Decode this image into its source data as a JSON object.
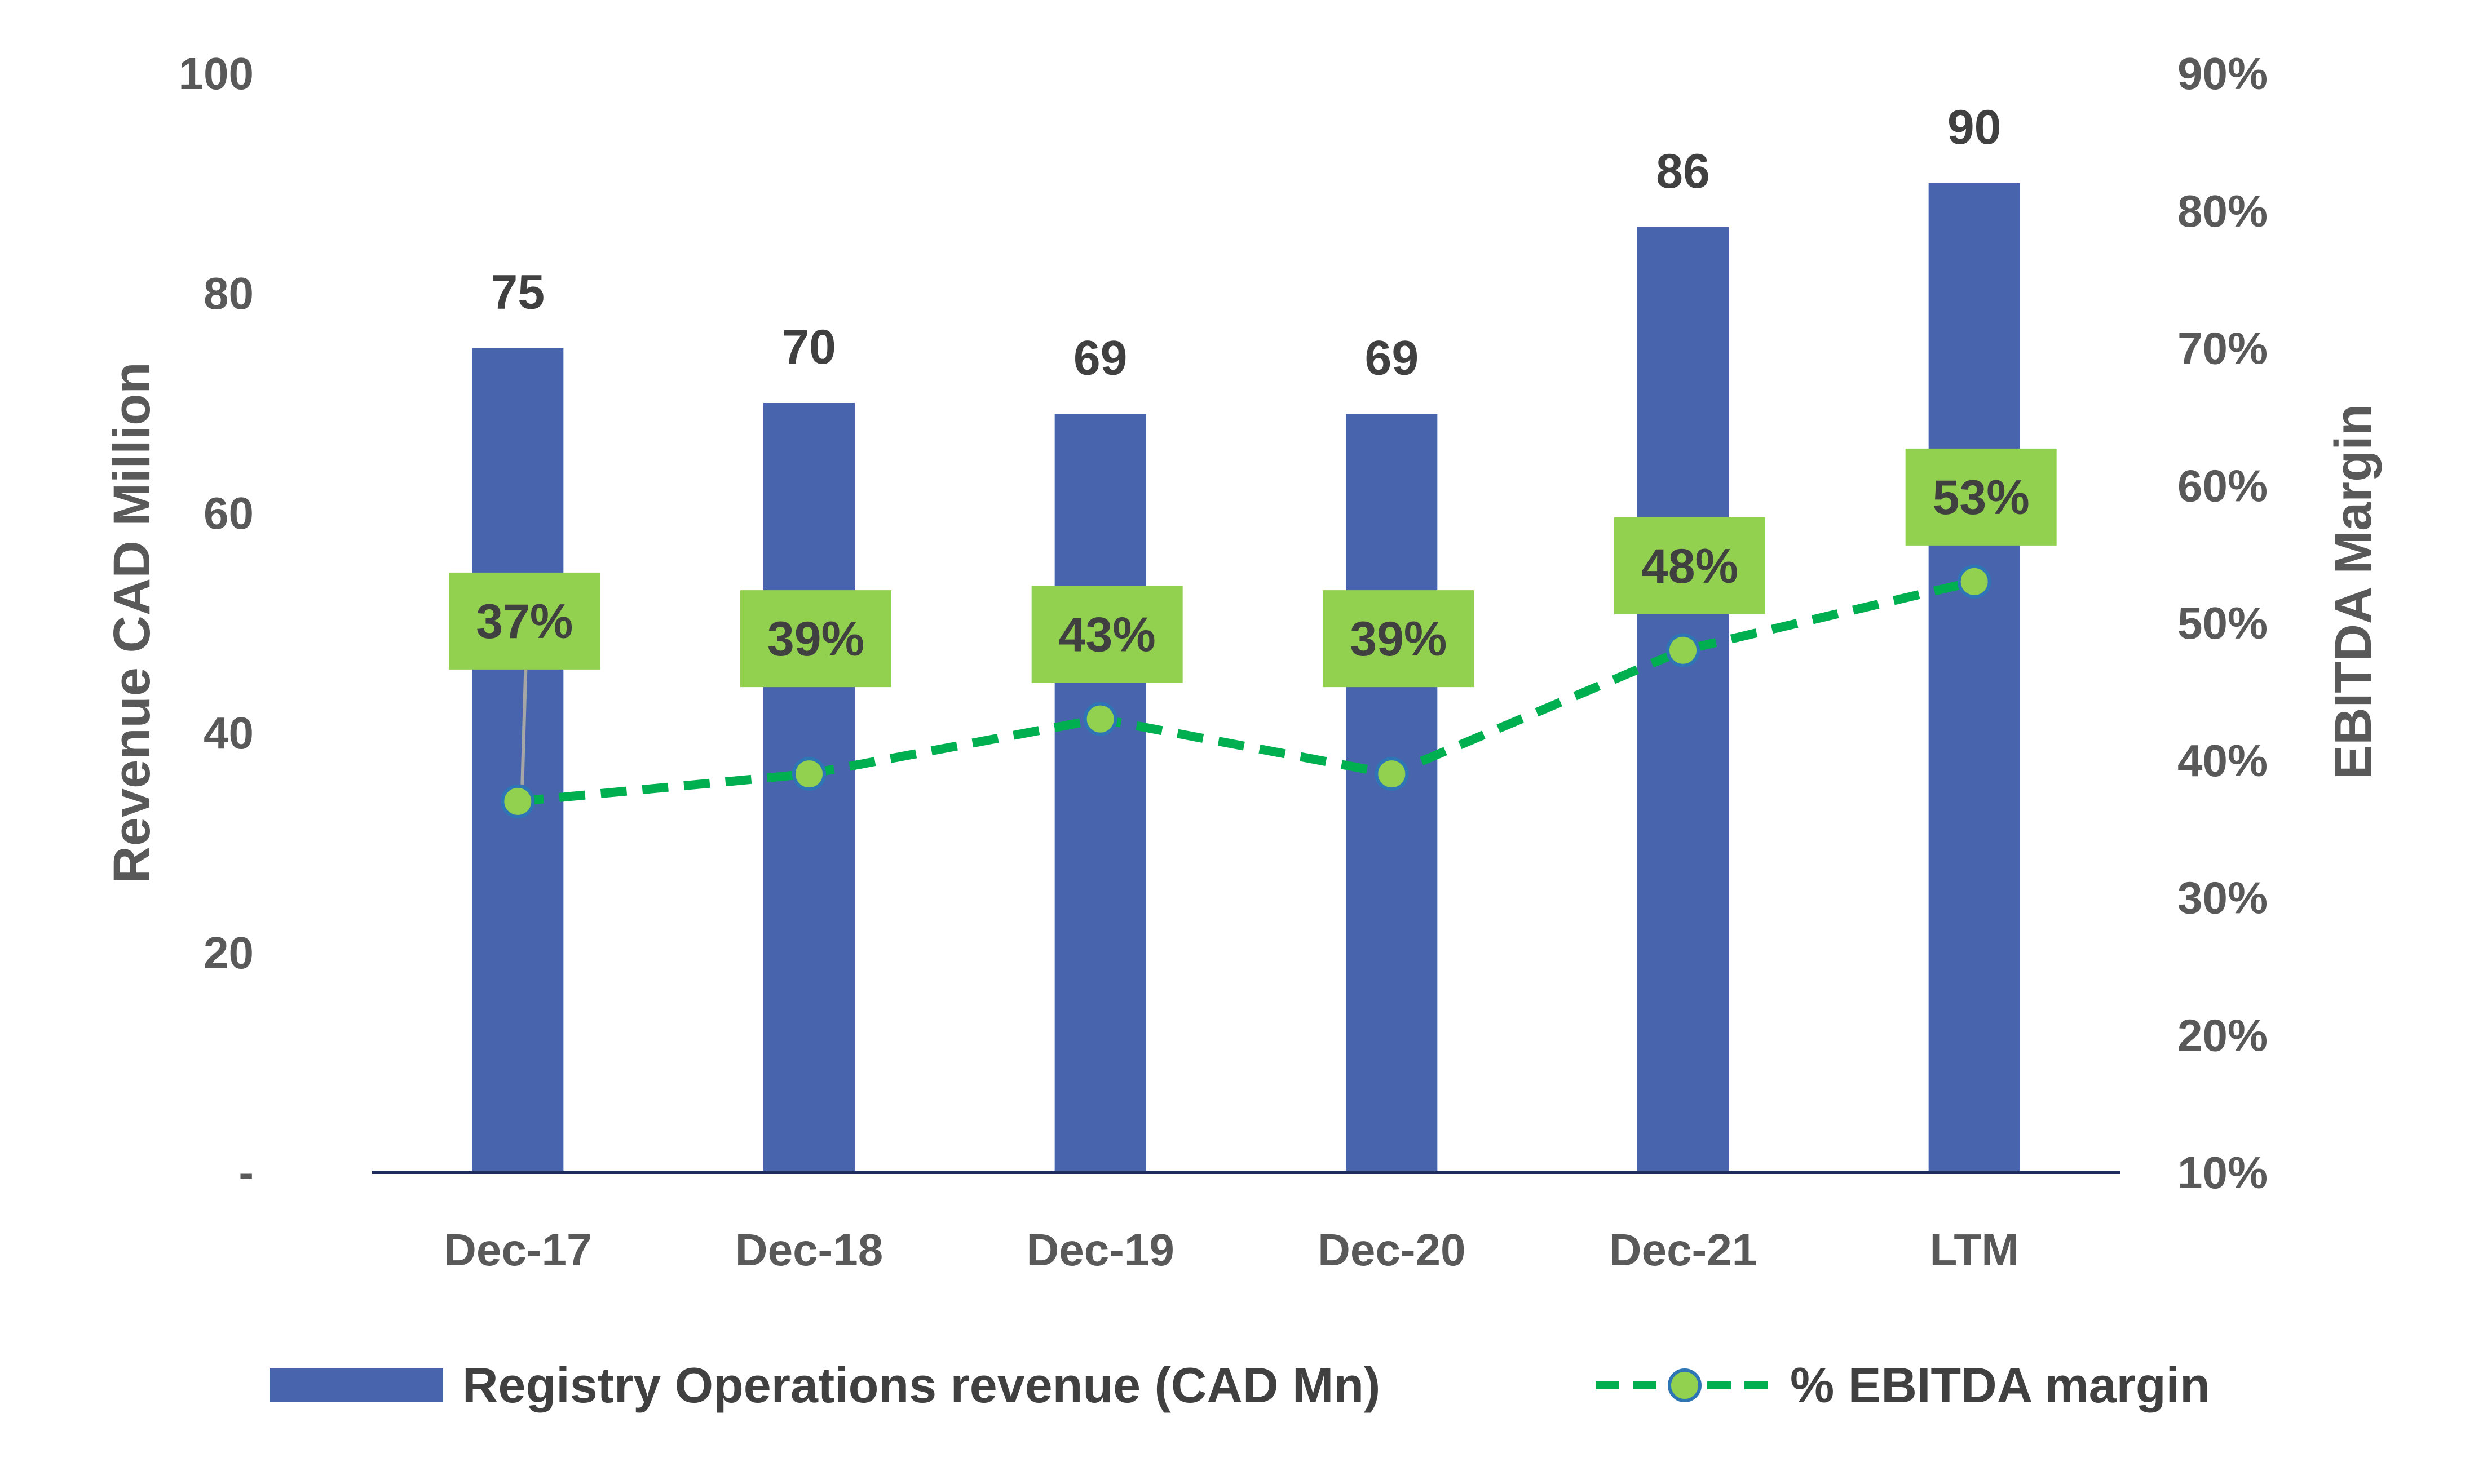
{
  "chart_data": {
    "type": "bar",
    "categories": [
      "Dec-17",
      "Dec-18",
      "Dec-19",
      "Dec-20",
      "Dec-21",
      "LTM"
    ],
    "series": [
      {
        "name": "Registry Operations revenue (CAD Mn)",
        "type": "bar",
        "axis": "left",
        "values": [
          75,
          70,
          69,
          69,
          86,
          90
        ],
        "labels": [
          "75",
          "70",
          "69",
          "69",
          "86",
          "90"
        ],
        "color": "#4864AC"
      },
      {
        "name": "% EBITDA margin",
        "type": "line",
        "axis": "right",
        "values": [
          37,
          39,
          43,
          39,
          48,
          53
        ],
        "labels": [
          "37%",
          "39%",
          "43%",
          "39%",
          "48%",
          "53%"
        ],
        "color": "#00B050",
        "marker_color": "#92D050",
        "label_box_color": "#92D050"
      }
    ],
    "ylabel": "Revenue CAD Million",
    "y2label": "EBITDA Margin",
    "ylim": [
      0,
      100
    ],
    "y2lim": [
      10,
      90
    ],
    "yticks": [
      0,
      20,
      40,
      60,
      80,
      100
    ],
    "ytick_labels": [
      "-",
      "20",
      "40",
      "60",
      "80",
      "100"
    ],
    "y2ticks": [
      10,
      20,
      30,
      40,
      50,
      60,
      70,
      80,
      90
    ],
    "y2tick_labels": [
      "10%",
      "20%",
      "30%",
      "40%",
      "50%",
      "60%",
      "70%",
      "80%",
      "90%"
    ],
    "grid": false,
    "legend_position": "bottom"
  }
}
